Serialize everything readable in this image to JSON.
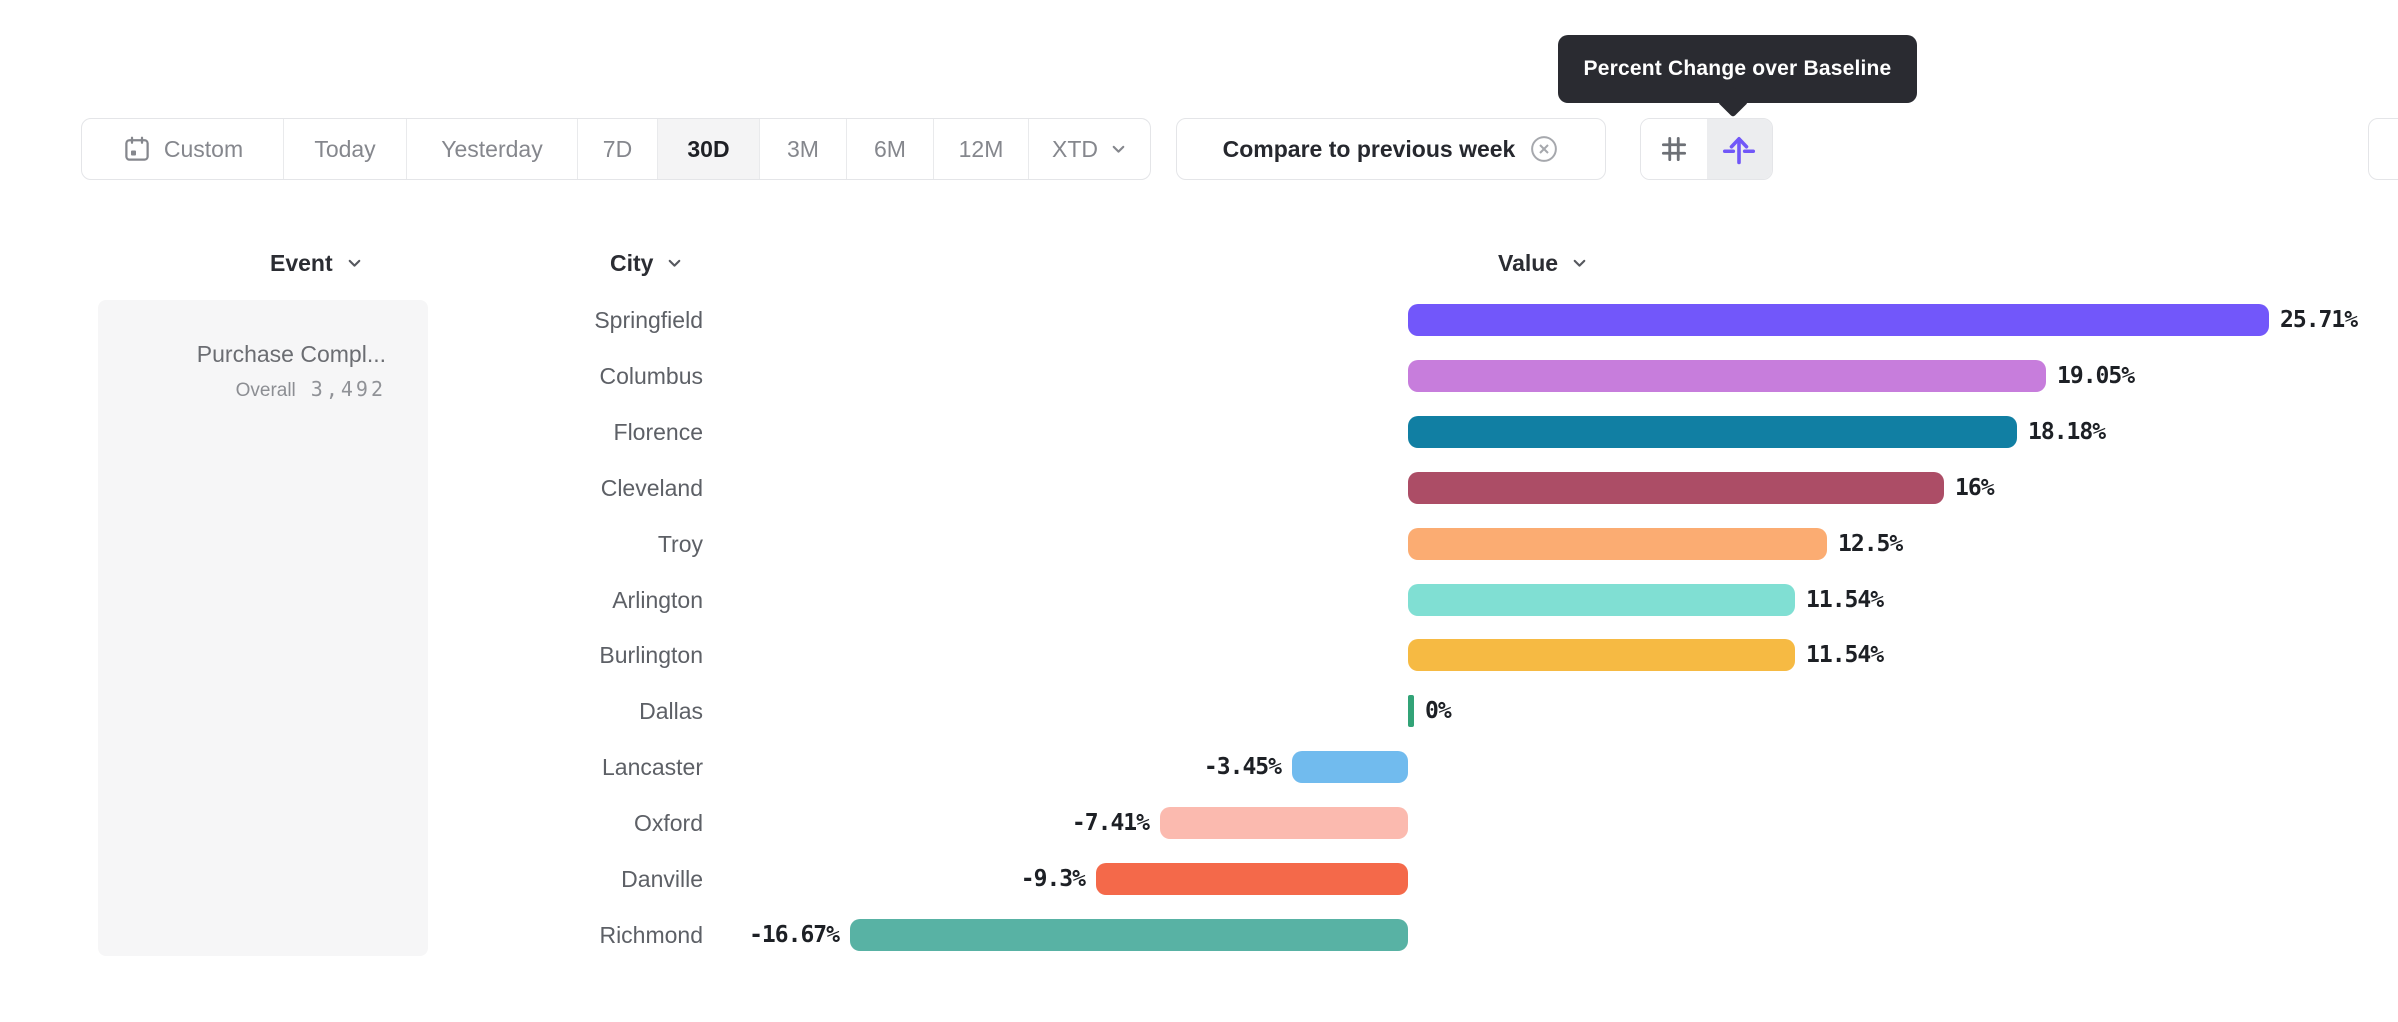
{
  "tooltip": {
    "text": "Percent Change over Baseline"
  },
  "toolbar": {
    "ranges": [
      {
        "label": "Custom",
        "icon": "calendar-icon",
        "selected": false
      },
      {
        "label": "Today",
        "selected": false
      },
      {
        "label": "Yesterday",
        "selected": false
      },
      {
        "label": "7D",
        "selected": false
      },
      {
        "label": "30D",
        "selected": true
      },
      {
        "label": "3M",
        "selected": false
      },
      {
        "label": "6M",
        "selected": false
      },
      {
        "label": "12M",
        "selected": false
      },
      {
        "label": "XTD",
        "chevron": true,
        "selected": false
      }
    ],
    "compare_chip": {
      "label": "Compare to previous week",
      "icon": "x-circle-icon"
    },
    "view_buttons": [
      {
        "name": "grid-view",
        "icon": "hash-icon",
        "selected": false
      },
      {
        "name": "percent-change-view",
        "icon": "arrow-up-from-baseline-icon",
        "selected": true
      }
    ],
    "accent_color": "#7157F8"
  },
  "columns": {
    "event": {
      "label": "Event"
    },
    "city": {
      "label": "City"
    },
    "value": {
      "label": "Value"
    }
  },
  "event_card": {
    "name": "Purchase Compl...",
    "overall_label": "Overall",
    "overall_value": "3,492"
  },
  "chart_data": {
    "type": "bar",
    "orientation": "horizontal",
    "title": "",
    "xlabel": "Value",
    "ylabel": "City",
    "value_format": "percent change over baseline",
    "baseline": 0,
    "xlim": [
      -16.67,
      25.71
    ],
    "grid": false,
    "legend": false,
    "categories": [
      "Springfield",
      "Columbus",
      "Florence",
      "Cleveland",
      "Troy",
      "Arlington",
      "Burlington",
      "Dallas",
      "Lancaster",
      "Oxford",
      "Danville",
      "Richmond"
    ],
    "values": [
      25.71,
      19.05,
      18.18,
      16,
      12.5,
      11.54,
      11.54,
      0,
      -3.45,
      -7.41,
      -9.3,
      -16.67
    ],
    "labels": [
      "25.71%",
      "19.05%",
      "18.18%",
      "16%",
      "12.5%",
      "11.54%",
      "11.54%",
      "0%",
      "-3.45%",
      "-7.41%",
      "-9.3%",
      "-16.67%"
    ],
    "colors": [
      "#7257FA",
      "#C77DDC",
      "#117FA3",
      "#AC4D66",
      "#FBAC72",
      "#80DFD3",
      "#F6BA43",
      "#32A377",
      "#71BBEE",
      "#FBBAAF",
      "#F4694A",
      "#58B2A4"
    ],
    "zero_tick_color": "#32A377"
  }
}
